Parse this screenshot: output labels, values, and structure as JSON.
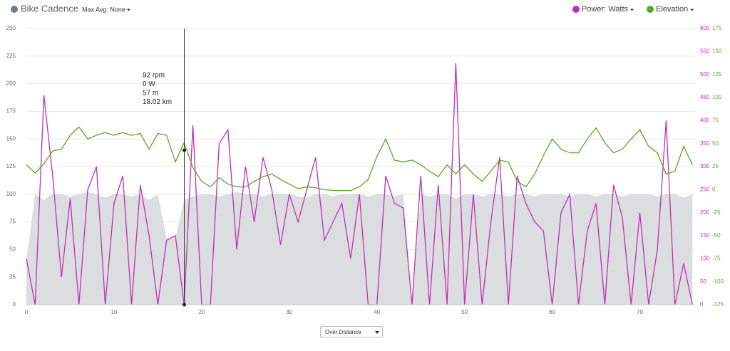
{
  "chart_data": {
    "type": "line",
    "max_avg_label": "Max Avg: None",
    "x_selector": "Over Distance",
    "x": [
      0,
      1,
      2,
      3,
      4,
      5,
      6,
      7,
      8,
      9,
      10,
      11,
      12,
      13,
      14,
      15,
      16,
      17,
      18,
      19,
      20,
      21,
      22,
      23,
      24,
      25,
      26,
      27,
      28,
      29,
      30,
      31,
      32,
      33,
      34,
      35,
      36,
      37,
      38,
      39,
      40,
      41,
      42,
      43,
      44,
      45,
      46,
      47,
      48,
      49,
      50,
      51,
      52,
      53,
      54,
      55,
      56,
      57,
      58,
      59,
      60,
      61,
      62,
      63,
      64,
      65,
      66,
      67,
      68,
      69,
      70,
      71,
      72,
      73,
      74,
      75,
      76
    ],
    "xlim": [
      0,
      76.3
    ],
    "xticks": [
      0,
      10,
      20,
      30,
      40,
      50,
      60,
      70
    ],
    "ylim": [
      0,
      250
    ],
    "yticks": [
      0,
      25,
      50,
      75,
      100,
      125,
      150,
      175,
      200,
      225,
      250
    ],
    "y2lim": [
      0,
      600
    ],
    "y2ticks": [
      0,
      50,
      100,
      150,
      200,
      250,
      300,
      350,
      400,
      450,
      500,
      550,
      600
    ],
    "y3lim": [
      -125,
      175
    ],
    "y3ticks": [
      -125,
      -100,
      -75,
      -50,
      -25,
      0,
      25,
      50,
      75,
      100,
      125,
      150,
      175
    ],
    "grid": true,
    "series": [
      {
        "name": "Bike Cadence",
        "color": "#6b7d8a",
        "fill": "#dcdde0",
        "axis": "y",
        "style": "area",
        "values": [
          40,
          100,
          95,
          100,
          100,
          98,
          100,
          102,
          100,
          97,
          100,
          100,
          98,
          100,
          95,
          100,
          60,
          60,
          95,
          98,
          100,
          100,
          98,
          100,
          102,
          100,
          100,
          98,
          100,
          100,
          100,
          98,
          97,
          100,
          100,
          98,
          100,
          100,
          100,
          98,
          100,
          100,
          98,
          100,
          0,
          100,
          98,
          100,
          100,
          96,
          100,
          100,
          98,
          100,
          100,
          98,
          100,
          100,
          98,
          100,
          100,
          100,
          98,
          100,
          100,
          98,
          100,
          100,
          98,
          100,
          100,
          100,
          98,
          100,
          100,
          97,
          100
        ]
      },
      {
        "name": "Power: Watts",
        "color": "#c02fb6",
        "axis": "y2",
        "style": "line",
        "values": [
          100,
          0,
          455,
          280,
          60,
          230,
          0,
          250,
          300,
          0,
          220,
          280,
          0,
          260,
          150,
          0,
          140,
          150,
          0,
          390,
          0,
          0,
          350,
          380,
          120,
          300,
          180,
          320,
          250,
          130,
          240,
          180,
          250,
          320,
          140,
          180,
          220,
          100,
          240,
          0,
          0,
          280,
          220,
          210,
          0,
          280,
          0,
          260,
          0,
          525,
          0,
          240,
          0,
          180,
          320,
          0,
          280,
          220,
          180,
          160,
          0,
          200,
          240,
          0,
          160,
          220,
          0,
          260,
          190,
          0,
          200,
          0,
          120,
          400,
          0,
          90,
          0
        ]
      },
      {
        "name": "Elevation",
        "color": "#5aa72a",
        "axis": "y3",
        "style": "line",
        "values": [
          27,
          18,
          28,
          42,
          44,
          59,
          68,
          55,
          59,
          62,
          59,
          62,
          59,
          61,
          44,
          61,
          59,
          30,
          51,
          24,
          9,
          3,
          13,
          6,
          3,
          3,
          9,
          14,
          17,
          11,
          6,
          1,
          3,
          2,
          0,
          -1,
          -1,
          -1,
          3,
          11,
          36,
          55,
          32,
          30,
          32,
          27,
          20,
          14,
          27,
          17,
          27,
          17,
          9,
          20,
          32,
          30,
          9,
          3,
          17,
          37,
          55,
          44,
          40,
          40,
          55,
          67,
          51,
          40,
          44,
          55,
          65,
          47,
          40,
          17,
          20,
          47,
          27
        ]
      }
    ],
    "tooltip": {
      "x": {
        "value": 18.02,
        "label": "18.02 km"
      },
      "lines": [
        "92 rpm",
        "0 W",
        "57 m"
      ]
    }
  }
}
